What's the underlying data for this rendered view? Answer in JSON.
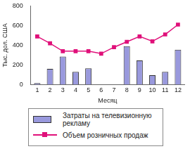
{
  "chart_data": {
    "type": "bar",
    "categories": [
      "1",
      "2",
      "3",
      "4",
      "5",
      "6",
      "7",
      "8",
      "9",
      "10",
      "11",
      "12"
    ],
    "series": [
      {
        "name": "Затраты на телевизионную рекламу",
        "type": "bar",
        "color": "#9999dd",
        "values": [
          15,
          160,
          285,
          130,
          165,
          0,
          0,
          390,
          245,
          95,
          130,
          355
        ]
      },
      {
        "name": "Объем розничных продаж",
        "type": "line",
        "color": "#e0107a",
        "marker": "square",
        "values": [
          490,
          420,
          340,
          340,
          340,
          315,
          380,
          435,
          490,
          440,
          510,
          610
        ]
      }
    ],
    "y_label": "Тыс. дол. США",
    "x_label": "Месяц",
    "ylim": [
      0,
      800
    ],
    "yticks": [
      0,
      200,
      400,
      600,
      800
    ],
    "grid": false,
    "legend": "bottom"
  }
}
